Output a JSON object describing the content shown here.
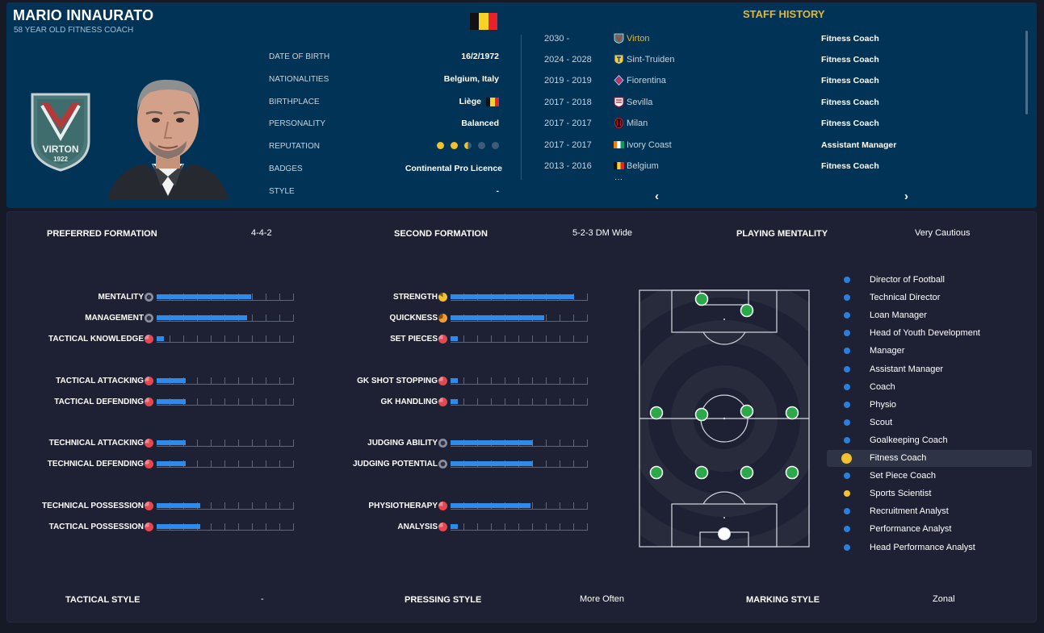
{
  "staff": {
    "name": "MARIO INNAURATO",
    "subtitle": "58 YEAR OLD FITNESS COACH",
    "club_badge_text": "VIRTON",
    "club_badge_year": "1922"
  },
  "info": [
    {
      "label": "DATE OF BIRTH",
      "value": "16/2/1972"
    },
    {
      "label": "NATIONALITIES",
      "value": "Belgium, Italy"
    },
    {
      "label": "BIRTHPLACE",
      "value": "Liège"
    },
    {
      "label": "PERSONALITY",
      "value": "Balanced"
    },
    {
      "label": "REPUTATION",
      "value": ""
    },
    {
      "label": "BADGES",
      "value": "Continental Pro Licence"
    },
    {
      "label": "STYLE",
      "value": "-"
    }
  ],
  "reputation": {
    "stars_filled": 2.5,
    "stars_total": 5
  },
  "history": {
    "title": "STAFF HISTORY",
    "more": "···",
    "prev": "‹",
    "next": "›",
    "rows": [
      {
        "years": "2030 -",
        "club": "Virton",
        "role": "Fitness Coach",
        "icon": "virton-icon"
      },
      {
        "years": "2024 - 2028",
        "club": "Sint-Truiden",
        "role": "Fitness Coach",
        "icon": "sint-truiden-icon"
      },
      {
        "years": "2019 - 2019",
        "club": "Fiorentina",
        "role": "Fitness Coach",
        "icon": "fiorentina-icon"
      },
      {
        "years": "2017 - 2018",
        "club": "Sevilla",
        "role": "Fitness Coach",
        "icon": "sevilla-icon"
      },
      {
        "years": "2017 - 2017",
        "club": "Milan",
        "role": "Fitness Coach",
        "icon": "milan-icon"
      },
      {
        "years": "2017 - 2017",
        "club": "Ivory Coast",
        "role": "Assistant Manager",
        "icon": "ivory-coast-flag-icon"
      },
      {
        "years": "2013 - 2016",
        "club": "Belgium",
        "role": "Fitness Coach",
        "icon": "belgium-flag-icon"
      }
    ]
  },
  "summary": {
    "preferred_formation_label": "PREFERRED FORMATION",
    "preferred_formation": "4-4-2",
    "second_formation_label": "SECOND FORMATION",
    "second_formation": "5-2-3 DM Wide",
    "playing_mentality_label": "PLAYING MENTALITY",
    "playing_mentality": "Very Cautious",
    "tactical_style_label": "TACTICAL STYLE",
    "tactical_style": "-",
    "pressing_style_label": "PRESSING STYLE",
    "pressing_style": "More Often",
    "marking_style_label": "MARKING STYLE",
    "marking_style": "Zonal"
  },
  "attributes_left": [
    {
      "label": "MENTALITY",
      "fraction": 0.69,
      "icon": "neutral"
    },
    {
      "label": "MANAGEMENT",
      "fraction": 0.66,
      "icon": "neutral"
    },
    {
      "label": "TACTICAL KNOWLEDGE",
      "fraction": 0.05,
      "icon": "red"
    },
    {
      "label": "TACTICAL ATTACKING",
      "fraction": 0.21,
      "icon": "red"
    },
    {
      "label": "TACTICAL DEFENDING",
      "fraction": 0.21,
      "icon": "red"
    },
    {
      "label": "TECHNICAL ATTACKING",
      "fraction": 0.21,
      "icon": "red"
    },
    {
      "label": "TECHNICAL DEFENDING",
      "fraction": 0.21,
      "icon": "red"
    },
    {
      "label": "TECHNICAL POSSESSION",
      "fraction": 0.32,
      "icon": "red"
    },
    {
      "label": "TACTICAL POSSESSION",
      "fraction": 0.32,
      "icon": "red"
    }
  ],
  "attributes_right": [
    {
      "label": "STRENGTH",
      "fraction": 0.9,
      "icon": "gold"
    },
    {
      "label": "QUICKNESS",
      "fraction": 0.68,
      "icon": "orange"
    },
    {
      "label": "SET PIECES",
      "fraction": 0.05,
      "icon": "red"
    },
    {
      "label": "GK SHOT STOPPING",
      "fraction": 0.05,
      "icon": "red"
    },
    {
      "label": "GK HANDLING",
      "fraction": 0.05,
      "icon": "red"
    },
    {
      "label": "JUDGING ABILITY",
      "fraction": 0.6,
      "icon": "neutral"
    },
    {
      "label": "JUDGING POTENTIAL",
      "fraction": 0.6,
      "icon": "neutral"
    },
    {
      "label": "PHYSIOTHERAPY",
      "fraction": 0.58,
      "icon": "red"
    },
    {
      "label": "ANALYSIS",
      "fraction": 0.05,
      "icon": "red"
    }
  ],
  "roles": [
    {
      "label": "Director of Football",
      "dot": "blue"
    },
    {
      "label": "Technical Director",
      "dot": "blue"
    },
    {
      "label": "Loan Manager",
      "dot": "blue"
    },
    {
      "label": "Head of Youth Development",
      "dot": "blue"
    },
    {
      "label": "Manager",
      "dot": "blue"
    },
    {
      "label": "Assistant Manager",
      "dot": "blue"
    },
    {
      "label": "Coach",
      "dot": "blue"
    },
    {
      "label": "Physio",
      "dot": "blue"
    },
    {
      "label": "Scout",
      "dot": "blue"
    },
    {
      "label": "Goalkeeping Coach",
      "dot": "blue"
    },
    {
      "label": "Fitness Coach",
      "dot": "yellow",
      "selected": true
    },
    {
      "label": "Set Piece Coach",
      "dot": "blue"
    },
    {
      "label": "Sports Scientist",
      "dot": "yellow"
    },
    {
      "label": "Recruitment Analyst",
      "dot": "blue"
    },
    {
      "label": "Performance Analyst",
      "dot": "blue"
    },
    {
      "label": "Head Performance Analyst",
      "dot": "blue"
    }
  ],
  "colors": {
    "top_panel": "#013356",
    "main_panel": "#1d2133",
    "accent_gold": "#e3b730",
    "bar_blue": "#2e8bea",
    "player_green": "#2aa84a"
  }
}
